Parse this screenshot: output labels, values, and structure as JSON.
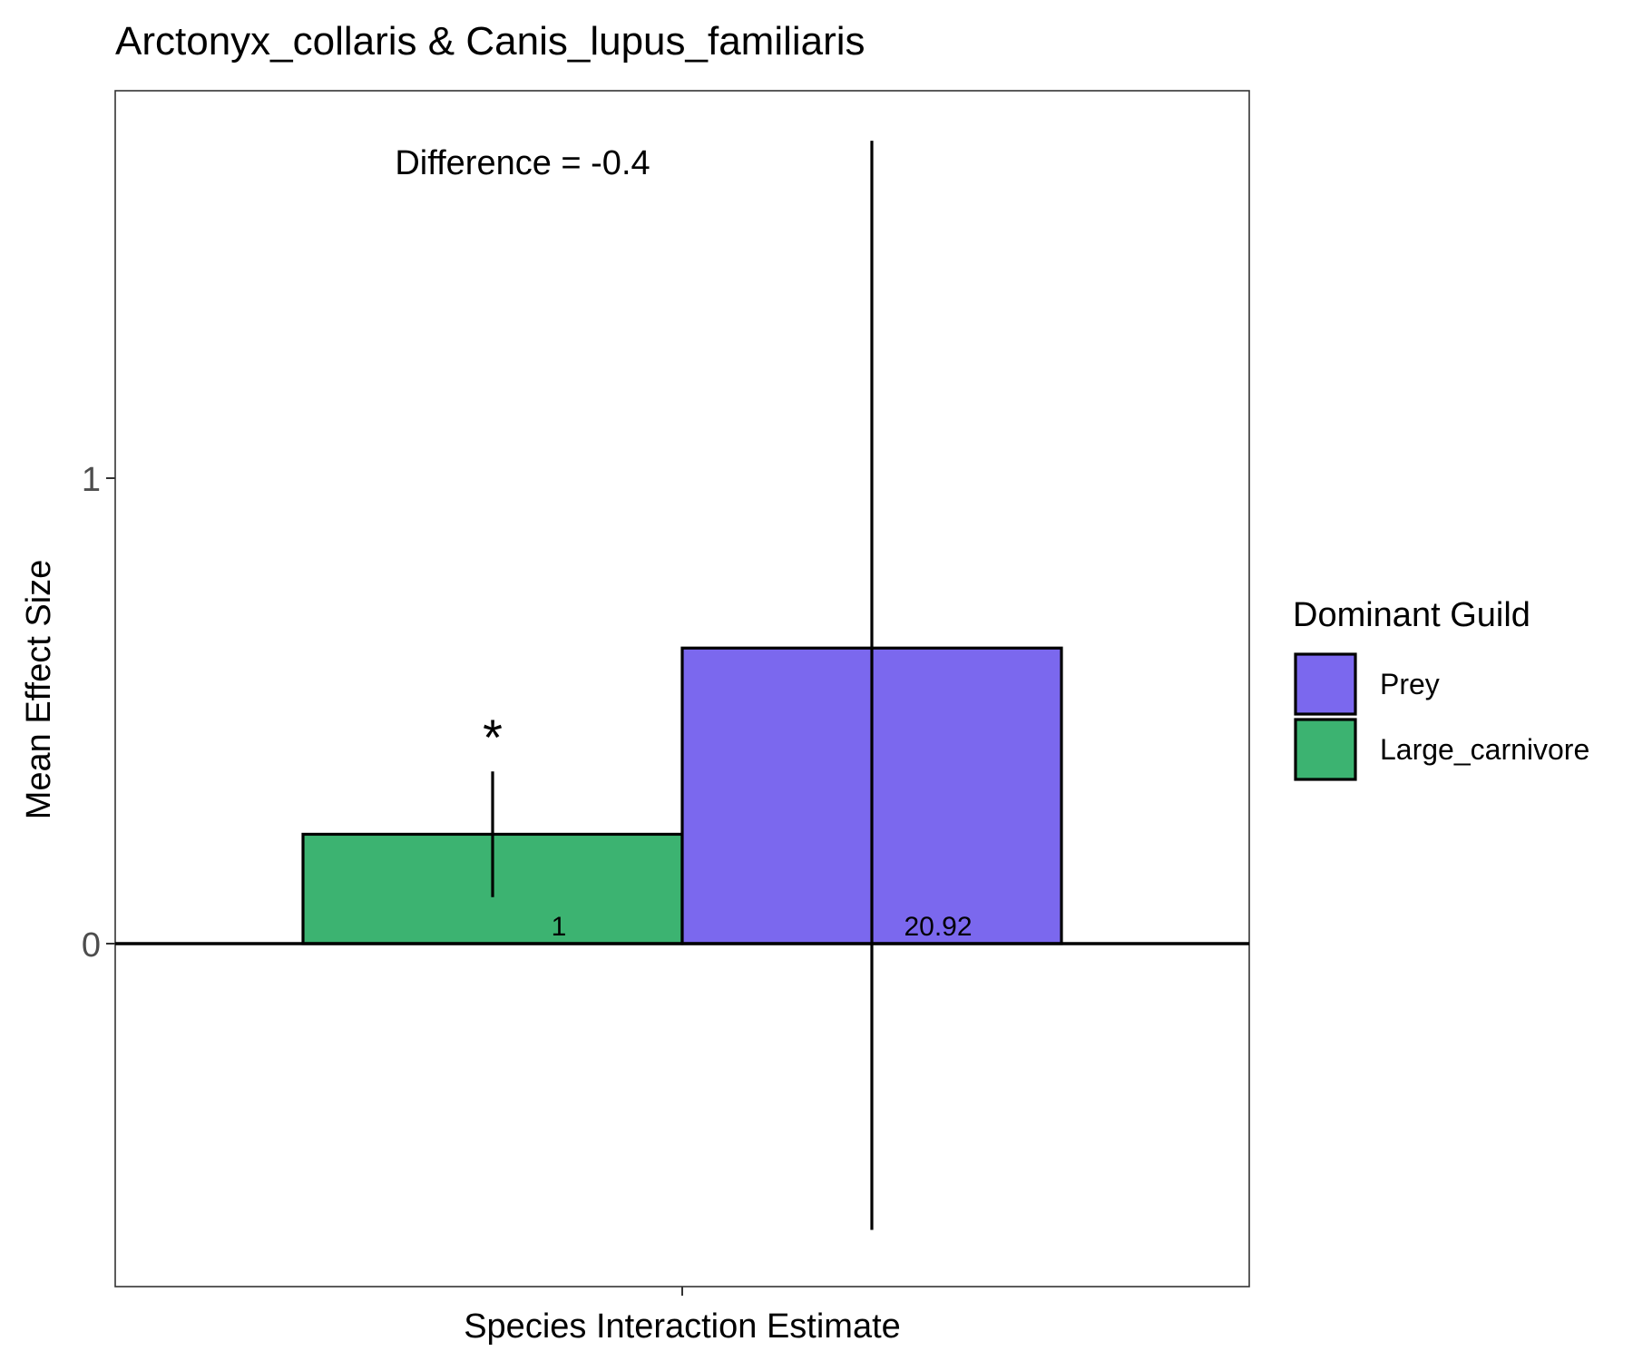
{
  "chart_data": {
    "type": "bar",
    "title": "Arctonyx_collaris & Canis_lupus_familiaris",
    "xlabel": "Species Interaction Estimate",
    "ylabel": "Mean Effect Size",
    "x_tick_labels": [
      ""
    ],
    "y_ticks": [
      0,
      1
    ],
    "ylim": [
      -0.73,
      1.67
    ],
    "grid": false,
    "annotation": "Difference = -0.4",
    "legend": {
      "title": "Dominant Guild",
      "position": "right",
      "entries": [
        {
          "label": "Prey",
          "color": "#7B68EE"
        },
        {
          "label": "Large_carnivore",
          "color": "#3CB371"
        }
      ]
    },
    "series": [
      {
        "name": "Large_carnivore",
        "color": "#3CB371",
        "value": 0.235,
        "error_low": 0.1,
        "error_high": 0.37,
        "count_label": "1",
        "significance": "*"
      },
      {
        "name": "Prey",
        "color": "#7B68EE",
        "value": 0.635,
        "error_low": -0.615,
        "error_high": 1.725,
        "count_label": "20.92",
        "significance": ""
      }
    ]
  }
}
